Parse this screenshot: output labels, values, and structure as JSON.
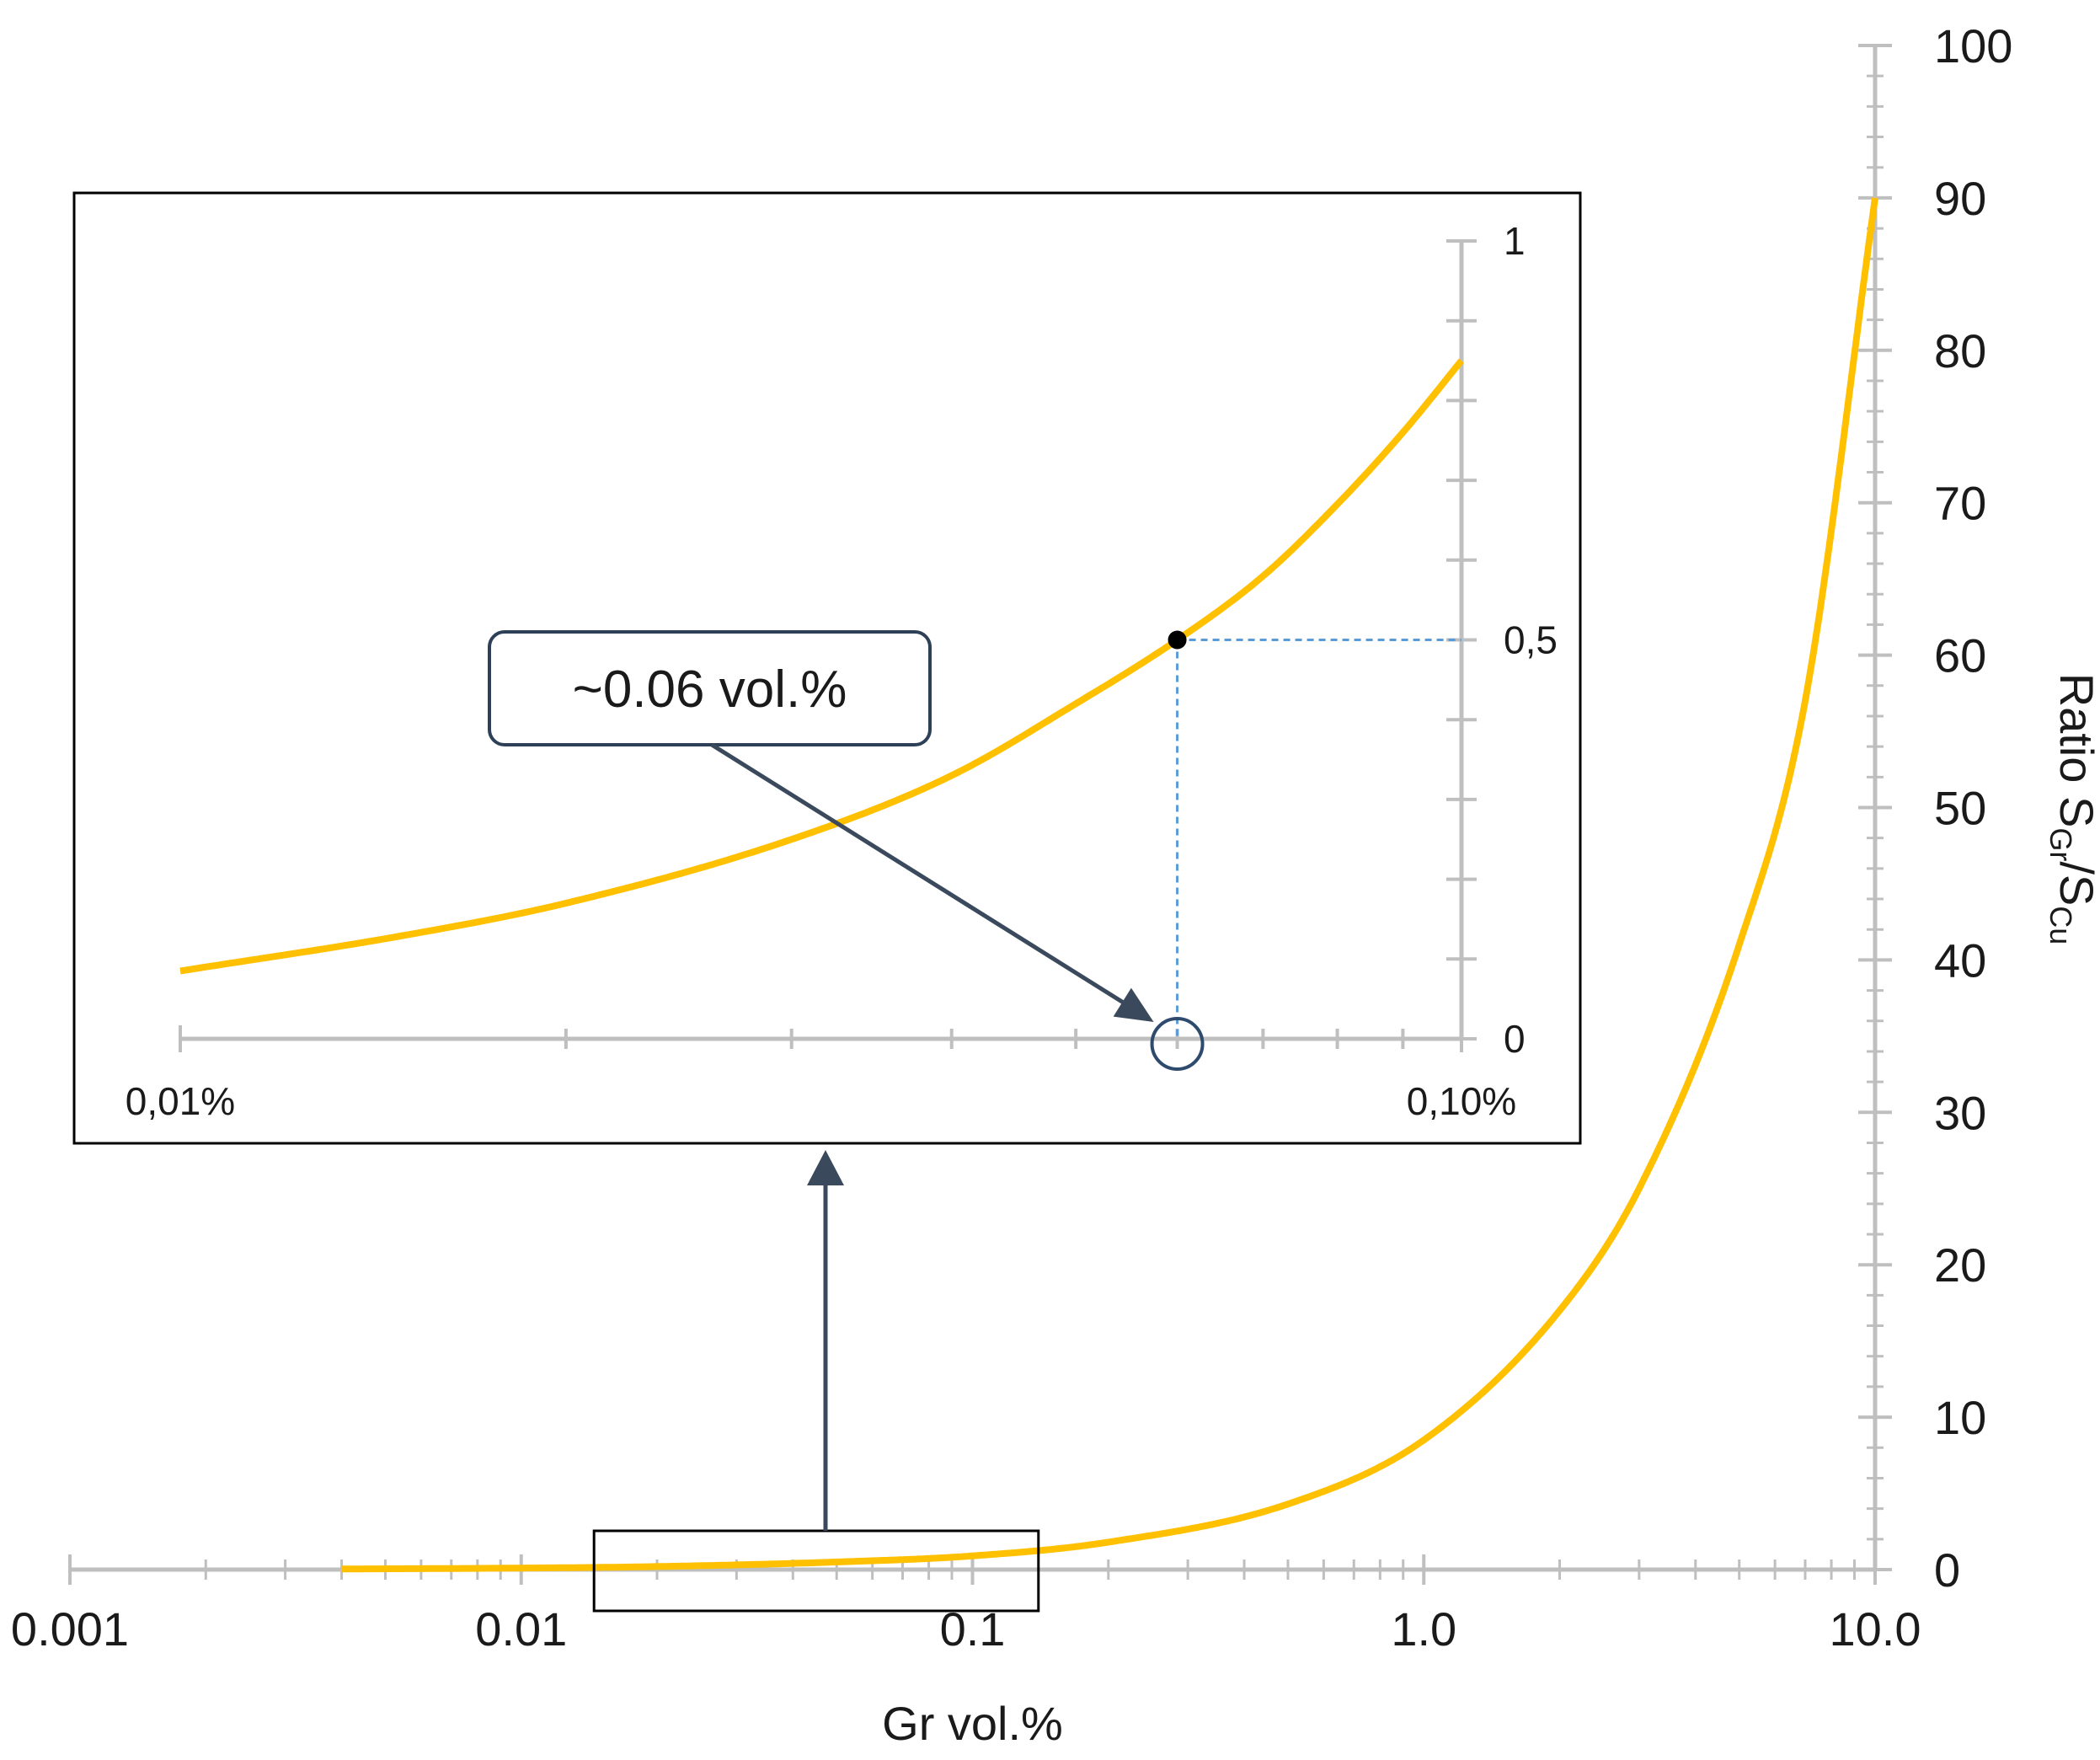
{
  "colors": {
    "curve": "#FFC000",
    "axis": "#BFBFBF",
    "frame": "#000000",
    "guide": "#5B9BD5",
    "callout_border": "#2E4057",
    "arrow": "#3A4A5C",
    "marker": "#000000",
    "circle": "#2E4B6E"
  },
  "chart_data": [
    {
      "type": "line",
      "title": "",
      "xlabel": "Gr vol.%",
      "ylabel_main": "Ratio S",
      "ylabel_sub1": "Gr",
      "ylabel_mid": "/S",
      "ylabel_sub2": "Cu",
      "x_scale": "log",
      "xlim": [
        0.001,
        10.0
      ],
      "ylim": [
        0,
        100
      ],
      "x_ticks": [
        0.001,
        0.01,
        0.1,
        1.0,
        10.0
      ],
      "x_tick_labels": [
        "0.001",
        "0.01",
        "0.1",
        "1.0",
        "10.0"
      ],
      "y_ticks": [
        0,
        10,
        20,
        30,
        40,
        50,
        60,
        70,
        80,
        90,
        100
      ],
      "y_tick_labels": [
        "0",
        "10",
        "20",
        "30",
        "40",
        "50",
        "60",
        "70",
        "80",
        "90",
        "100"
      ],
      "y_axis_side": "right",
      "grid": false,
      "series": [
        {
          "x": [
            0.004,
            0.01,
            0.02,
            0.05,
            0.1,
            0.2,
            0.5,
            1.0,
            2.0,
            3.0,
            5.0,
            7.0,
            10.0
          ],
          "values": [
            0.04,
            0.1,
            0.2,
            0.5,
            0.9,
            1.8,
            4.3,
            8.5,
            17,
            25,
            41,
            57,
            90
          ]
        }
      ]
    },
    {
      "type": "line",
      "title": "",
      "x_scale": "log",
      "xlim": [
        0.01,
        0.1
      ],
      "ylim": [
        0,
        1
      ],
      "x_tick_labels": [
        "0,01%",
        "0,10%"
      ],
      "y_tick_labels": [
        "0",
        "0,5",
        "1"
      ],
      "y_axis_side": "right",
      "grid": false,
      "series": [
        {
          "x": [
            0.01,
            0.015,
            0.02,
            0.03,
            0.04,
            0.05,
            0.06,
            0.07,
            0.08,
            0.09,
            0.1
          ],
          "values": [
            0.085,
            0.13,
            0.17,
            0.25,
            0.33,
            0.42,
            0.5,
            0.58,
            0.67,
            0.76,
            0.85
          ]
        }
      ],
      "highlight": {
        "x": 0.06,
        "y": 0.5
      },
      "annotation": "~0.06 vol.%"
    }
  ]
}
